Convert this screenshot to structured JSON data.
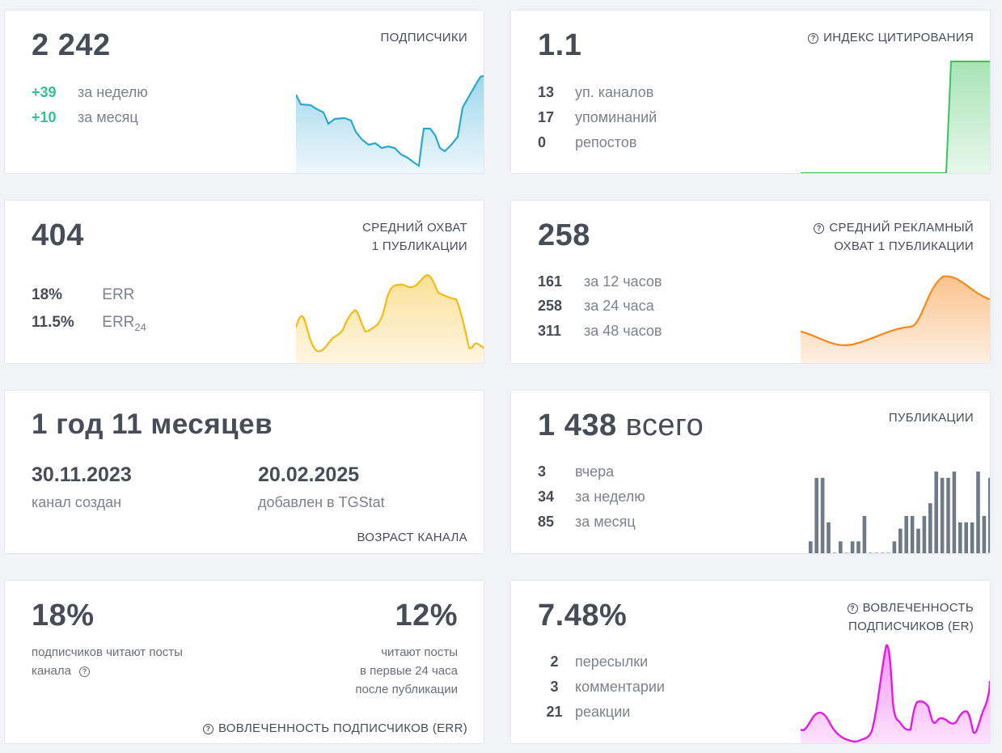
{
  "subscribers": {
    "value": "2 242",
    "label": "ПОДПИСЧИКИ",
    "rows": [
      {
        "num": "+39",
        "text": "за неделю"
      },
      {
        "num": "+10",
        "text": "за месяц"
      }
    ],
    "color": "#2aa7d3"
  },
  "citation": {
    "value": "1.1",
    "label": "ИНДЕКС ЦИТИРОВАНИЯ",
    "rows": [
      {
        "num": "13",
        "text": "уп. каналов"
      },
      {
        "num": "17",
        "text": "упоминаний"
      },
      {
        "num": "0",
        "text": "репостов"
      }
    ],
    "color": "#3cc35a"
  },
  "avg_reach": {
    "value": "404",
    "label_line1": "СРЕДНИЙ ОХВАТ",
    "label_line2": "1 ПУБЛИКАЦИИ",
    "err": {
      "num": "18%",
      "text": "ERR"
    },
    "err24": {
      "num": "11.5%",
      "text": "ERR",
      "sub": "24"
    },
    "color": "#f4bb16"
  },
  "ad_reach": {
    "value": "258",
    "label_line1": "СРЕДНИЙ РЕКЛАМНЫЙ",
    "label_line2": "ОХВАТ 1 ПУБЛИКАЦИИ",
    "rows": [
      {
        "num": "161",
        "text": "за 12 часов"
      },
      {
        "num": "258",
        "text": "за 24 часа"
      },
      {
        "num": "311",
        "text": "за 48 часов"
      }
    ],
    "color": "#f6881d"
  },
  "age": {
    "value": "1 год 11 месяцев",
    "created_date": "30.11.2023",
    "created_label": "канал создан",
    "added_date": "20.02.2025",
    "added_label": "добавлен в TGStat",
    "label": "ВОЗРАСТ КАНАЛА"
  },
  "publications": {
    "value_num": "1 438",
    "value_text": "всего",
    "label": "ПУБЛИКАЦИИ",
    "rows": [
      {
        "num": "3",
        "text": "вчера"
      },
      {
        "num": "34",
        "text": "за неделю"
      },
      {
        "num": "85",
        "text": "за месяц"
      }
    ],
    "color": "#6c7a8a",
    "bars": [
      2,
      12,
      12,
      5,
      0,
      2,
      0,
      2,
      2,
      6,
      0,
      0,
      0,
      0,
      2,
      4,
      6,
      6,
      4,
      6,
      8,
      13,
      12,
      12,
      13,
      5,
      5,
      5,
      13,
      6,
      12
    ]
  },
  "err_card": {
    "left_value": "18%",
    "left_text_line1": "подписчиков читают посты",
    "left_text_line2": "канала",
    "right_value": "12%",
    "right_text_line1": "читают посты",
    "right_text_line2": "в первые 24 часа",
    "right_text_line3": "после публикации",
    "label": "ВОВЛЕЧЕННОСТЬ ПОДПИСЧИКОВ (ERR)"
  },
  "er_card": {
    "value": "7.48%",
    "label_line1": "ВОВЛЕЧЕННОСТЬ",
    "label_line2": "ПОДПИСЧИКОВ (ER)",
    "rows": [
      {
        "num": "2",
        "text": "пересылки"
      },
      {
        "num": "3",
        "text": "комментарии"
      },
      {
        "num": "21",
        "text": "реакции"
      }
    ],
    "color": "#e619e6"
  }
}
